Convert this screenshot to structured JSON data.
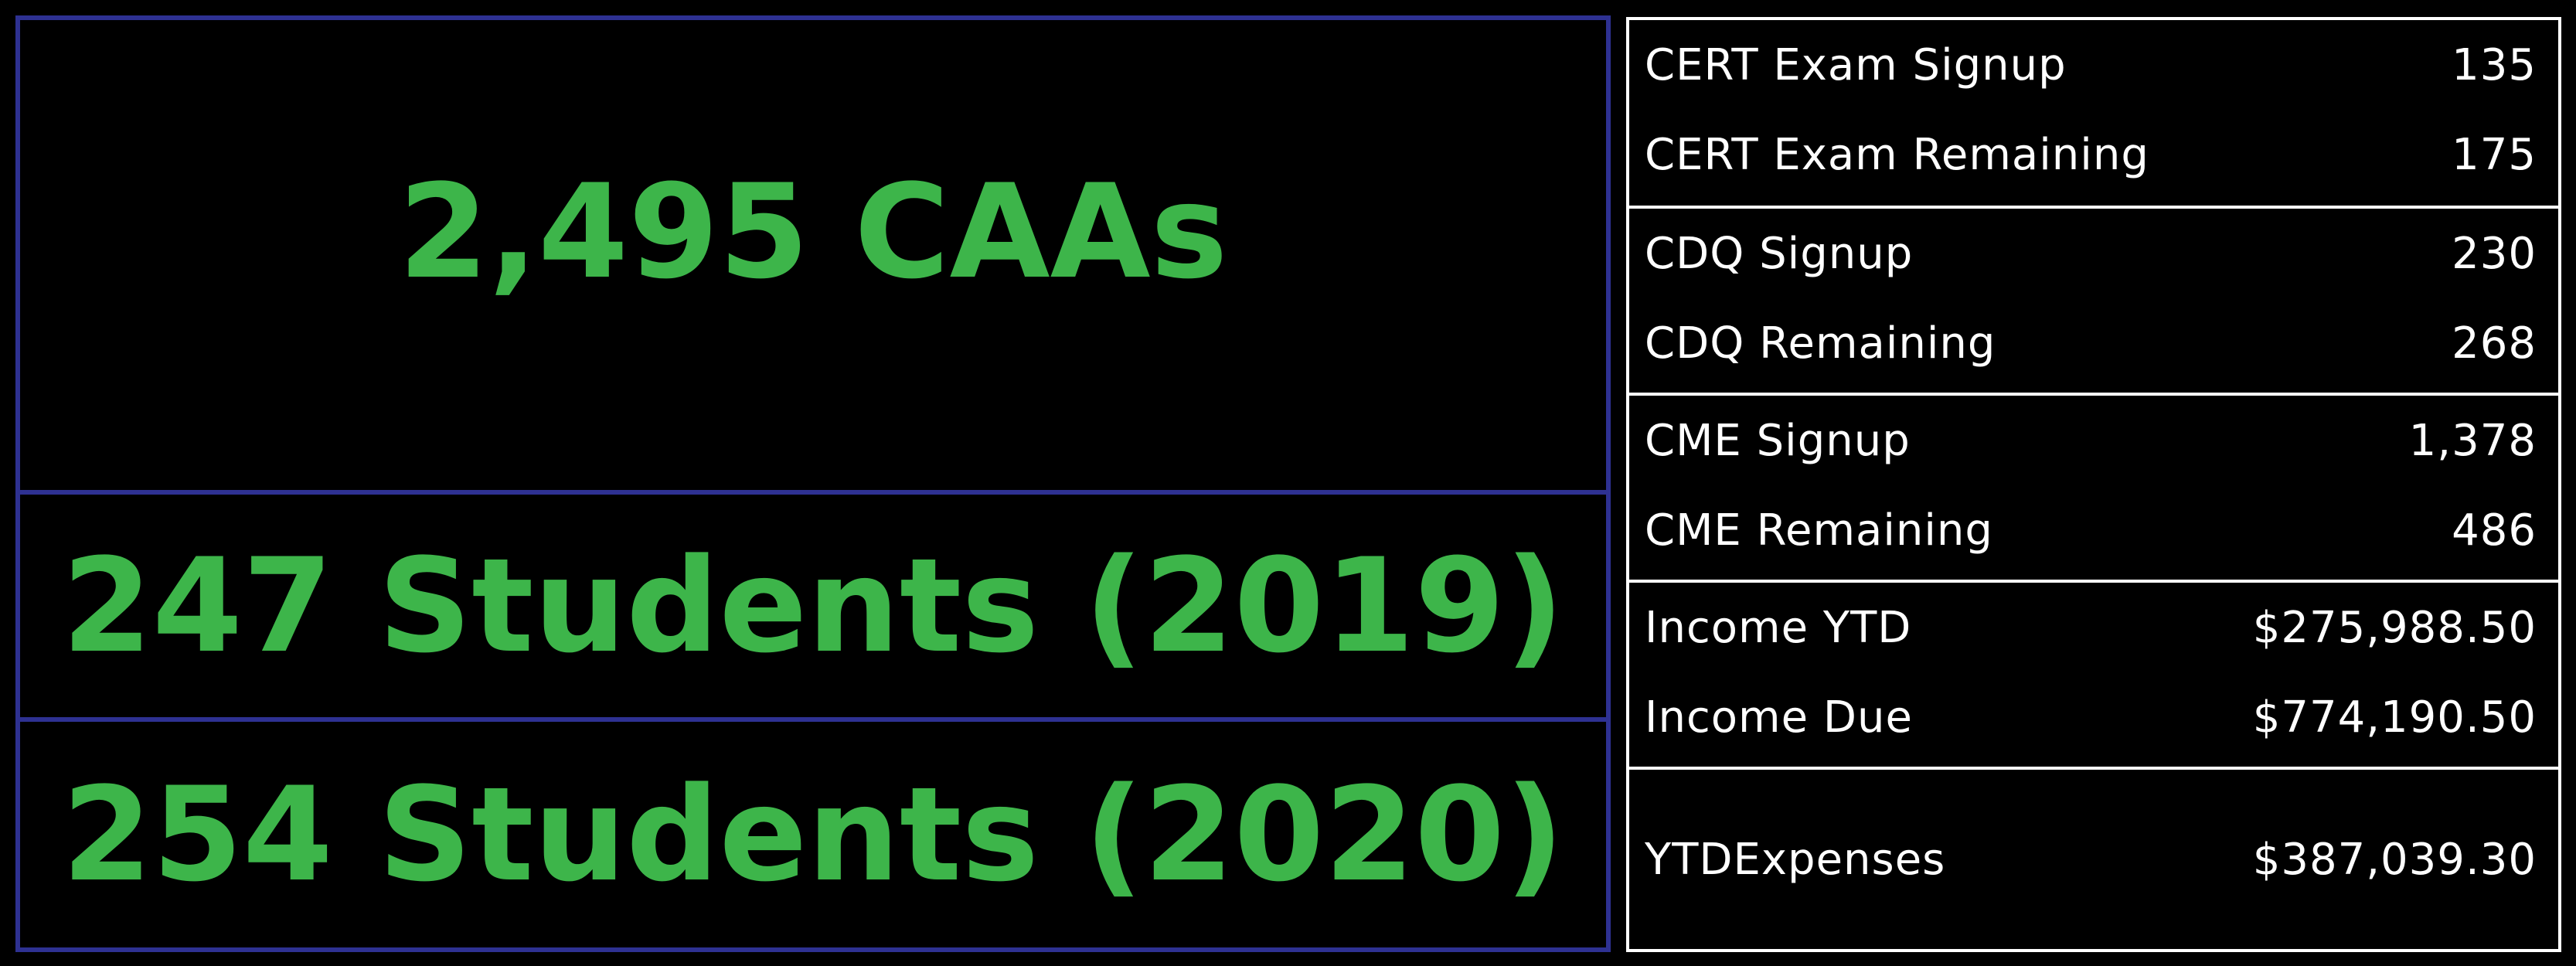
{
  "headline": {
    "caas": "2,495 CAAs",
    "students_2019": "247 Students (2019)",
    "students_2020": "254 Students (2020)"
  },
  "stats": {
    "cert_exam_signup": {
      "label": "CERT Exam Signup",
      "value": "135"
    },
    "cert_exam_remaining": {
      "label": "CERT Exam Remaining",
      "value": "175"
    },
    "cdq_signup": {
      "label": "CDQ Signup",
      "value": "230"
    },
    "cdq_remaining": {
      "label": "CDQ Remaining",
      "value": "268"
    },
    "cme_signup": {
      "label": "CME Signup",
      "value": "1,378"
    },
    "cme_remaining": {
      "label": "CME Remaining",
      "value": "486"
    },
    "income_ytd": {
      "label": "Income YTD",
      "value": "$275,988.50"
    },
    "income_due": {
      "label": "Income Due",
      "value": "$774,190.50"
    },
    "ytd_expenses": {
      "label": "YTDExpenses",
      "value": "$387,039.30"
    }
  },
  "colors": {
    "accent_green": "#3db54a",
    "border_blue": "#2e3192",
    "background": "#000000",
    "text": "#ffffff"
  }
}
